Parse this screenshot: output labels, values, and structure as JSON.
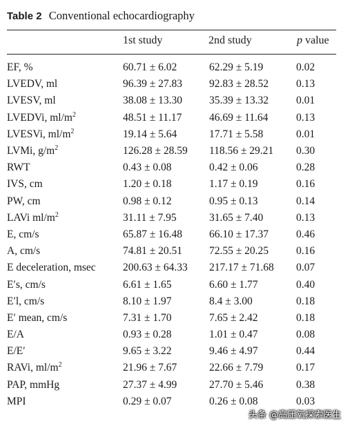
{
  "caption": {
    "label": "Table 2",
    "title": "Conventional echocardiography"
  },
  "columns": {
    "first": "1st study",
    "second": "2nd study",
    "p_prefix": "p",
    "p_suffix": " value"
  },
  "rows": [
    {
      "name": "EF, %",
      "sup": "",
      "v1": "60.71 ± 6.02",
      "v2": "62.29 ± 5.19",
      "p": "0.02"
    },
    {
      "name": "LVEDV, ml",
      "sup": "",
      "v1": "96.39 ± 27.83",
      "v2": "92.83 ± 28.52",
      "p": "0.13"
    },
    {
      "name": "LVESV, ml",
      "sup": "",
      "v1": "38.08 ± 13.30",
      "v2": "35.39 ± 13.32",
      "p": "0.01"
    },
    {
      "name": "LVEDVi, ml/m",
      "sup": "2",
      "v1": "48.51 ± 11.17",
      "v2": "46.69 ± 11.64",
      "p": "0.13"
    },
    {
      "name": "LVESVi, ml/m",
      "sup": "2",
      "v1": "19.14 ± 5.64",
      "v2": "17.71 ± 5.58",
      "p": "0.01"
    },
    {
      "name": "LVMi, g/m",
      "sup": "2",
      "v1": "126.28 ± 28.59",
      "v2": "118.56 ± 29.21",
      "p": "0.30"
    },
    {
      "name": "RWT",
      "sup": "",
      "v1": "0.43 ± 0.08",
      "v2": "0.42 ± 0.06",
      "p": "0.28"
    },
    {
      "name": "IVS, cm",
      "sup": "",
      "v1": "1.20 ± 0.18",
      "v2": "1.17 ± 0.19",
      "p": "0.16"
    },
    {
      "name": "PW, cm",
      "sup": "",
      "v1": "0.98 ± 0.12",
      "v2": "0.95 ± 0.13",
      "p": "0.14"
    },
    {
      "name": "LAVi ml/m",
      "sup": "2",
      "v1": "31.11 ± 7.95",
      "v2": "31.65 ± 7.40",
      "p": "0.13"
    },
    {
      "name": "E, cm/s",
      "sup": "",
      "v1": "65.87 ± 16.48",
      "v2": "66.10 ± 17.37",
      "p": "0.46"
    },
    {
      "name": "A, cm/s",
      "sup": "",
      "v1": "74.81 ± 20.51",
      "v2": "72.55 ± 20.25",
      "p": "0.16"
    },
    {
      "name": "E deceleration, msec",
      "sup": "",
      "v1": "200.63 ± 64.33",
      "v2": "217.17 ± 71.68",
      "p": "0.07"
    },
    {
      "name": "E′s, cm/s",
      "sup": "",
      "v1": "6.61 ± 1.65",
      "v2": "6.60 ± 1.77",
      "p": "0.40"
    },
    {
      "name": "E′l, cm/s",
      "sup": "",
      "v1": "8.10 ± 1.97",
      "v2": "8.4 ± 3.00",
      "p": "0.18"
    },
    {
      "name": "E′ mean, cm/s",
      "sup": "",
      "v1": "7.31 ± 1.70",
      "v2": "7.65 ± 2.42",
      "p": "0.18"
    },
    {
      "name": "E/A",
      "sup": "",
      "v1": "0.93 ± 0.28",
      "v2": "1.01 ± 0.47",
      "p": "0.08"
    },
    {
      "name": "E/E′",
      "sup": "",
      "v1": "9.65 ± 3.22",
      "v2": "9.46 ± 4.97",
      "p": "0.44"
    },
    {
      "name": "RAVi, ml/m",
      "sup": "2",
      "v1": "21.96 ± 7.67",
      "v2": "22.66 ± 7.79",
      "p": "0.17"
    },
    {
      "name": "PAP, mmHg",
      "sup": "",
      "v1": "27.37 ± 4.99",
      "v2": "27.70 ± 5.46",
      "p": "0.38"
    },
    {
      "name": "MPI",
      "sup": "",
      "v1": "0.29 ± 0.07",
      "v2": "0.26 ± 0.08",
      "p": "0.03"
    }
  ],
  "watermark": "头条 @高压氧探索医生"
}
